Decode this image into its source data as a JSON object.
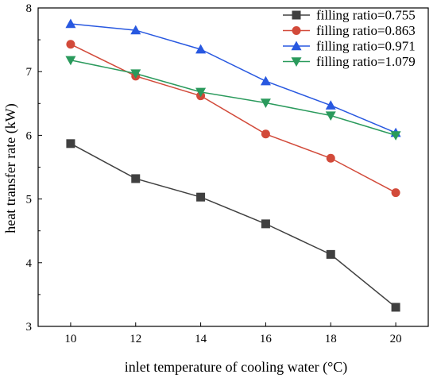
{
  "chart_data": {
    "type": "line",
    "title": "",
    "xlabel": "inlet temperature of cooling water (°C)",
    "ylabel": "heat transfer rate (kW)",
    "x": [
      10,
      12,
      14,
      16,
      18,
      20
    ],
    "xticks": [
      "10",
      "12",
      "14",
      "16",
      "18",
      "20"
    ],
    "yticks": [
      "3",
      "4",
      "5",
      "6",
      "7",
      "8"
    ],
    "xlim": [
      9,
      21
    ],
    "ylim": [
      3,
      8
    ],
    "grid": false,
    "legend_position": "top-right",
    "series": [
      {
        "name": "filling ratio=0.755",
        "color": "#404040",
        "marker": "square",
        "values": [
          5.87,
          5.32,
          5.03,
          4.61,
          4.13,
          3.3
        ]
      },
      {
        "name": "filling ratio=0.863",
        "color": "#d24a3a",
        "marker": "circle",
        "values": [
          7.43,
          6.93,
          6.62,
          6.02,
          5.64,
          5.1
        ]
      },
      {
        "name": "filling ratio=0.971",
        "color": "#2858e0",
        "marker": "triangle-up",
        "values": [
          7.75,
          7.65,
          7.35,
          6.85,
          6.47,
          6.04
        ]
      },
      {
        "name": "filling ratio=1.079",
        "color": "#2a9a5c",
        "marker": "triangle-down",
        "values": [
          7.18,
          6.97,
          6.68,
          6.51,
          6.31,
          6.0
        ]
      }
    ]
  }
}
